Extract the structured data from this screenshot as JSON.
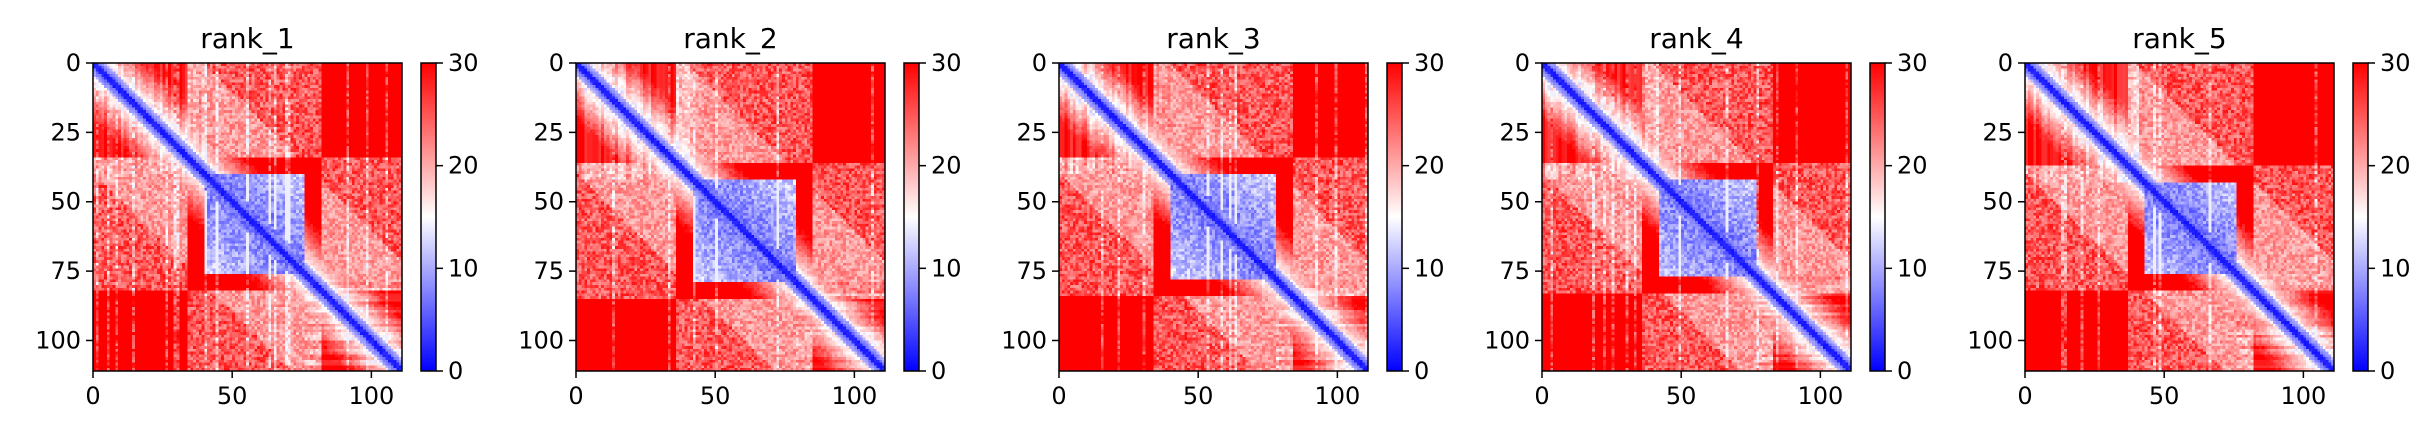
{
  "chart_data": [
    {
      "type": "heatmap",
      "title": "rank_1",
      "xlabel": "",
      "ylabel": "",
      "x_ticks": [
        0,
        50,
        100
      ],
      "y_ticks": [
        0,
        25,
        50,
        75,
        100
      ],
      "xlim": [
        0,
        111
      ],
      "ylim": [
        111,
        0
      ],
      "colorbar": {
        "range": [
          0,
          30
        ],
        "ticks": [
          0,
          10,
          20,
          30
        ],
        "colormap": "bwr",
        "low": "#0000ff",
        "mid": "#ffffff",
        "high": "#ff0000"
      },
      "size": 111,
      "domain_block": [
        40,
        75
      ],
      "variant_seed": 1
    },
    {
      "type": "heatmap",
      "title": "rank_2",
      "xlabel": "",
      "ylabel": "",
      "x_ticks": [
        0,
        50,
        100
      ],
      "y_ticks": [
        0,
        25,
        50,
        75,
        100
      ],
      "xlim": [
        0,
        111
      ],
      "ylim": [
        111,
        0
      ],
      "colorbar": {
        "range": [
          0,
          30
        ],
        "ticks": [
          0,
          10,
          20,
          30
        ],
        "colormap": "bwr",
        "low": "#0000ff",
        "mid": "#ffffff",
        "high": "#ff0000"
      },
      "size": 111,
      "domain_block": [
        42,
        78
      ],
      "variant_seed": 2
    },
    {
      "type": "heatmap",
      "title": "rank_3",
      "xlabel": "",
      "ylabel": "",
      "x_ticks": [
        0,
        50,
        100
      ],
      "y_ticks": [
        0,
        25,
        50,
        75,
        100
      ],
      "xlim": [
        0,
        111
      ],
      "ylim": [
        111,
        0
      ],
      "colorbar": {
        "range": [
          0,
          30
        ],
        "ticks": [
          0,
          10,
          20,
          30
        ],
        "colormap": "bwr",
        "low": "#0000ff",
        "mid": "#ffffff",
        "high": "#ff0000"
      },
      "size": 111,
      "domain_block": [
        40,
        77
      ],
      "variant_seed": 3
    },
    {
      "type": "heatmap",
      "title": "rank_4",
      "xlabel": "",
      "ylabel": "",
      "x_ticks": [
        0,
        50,
        100
      ],
      "y_ticks": [
        0,
        25,
        50,
        75,
        100
      ],
      "xlim": [
        0,
        111
      ],
      "ylim": [
        111,
        0
      ],
      "colorbar": {
        "range": [
          0,
          30
        ],
        "ticks": [
          0,
          10,
          20,
          30
        ],
        "colormap": "bwr",
        "low": "#0000ff",
        "mid": "#ffffff",
        "high": "#ff0000"
      },
      "size": 111,
      "domain_block": [
        42,
        76
      ],
      "variant_seed": 4
    },
    {
      "type": "heatmap",
      "title": "rank_5",
      "xlabel": "",
      "ylabel": "",
      "x_ticks": [
        0,
        50,
        100
      ],
      "y_ticks": [
        0,
        25,
        50,
        75,
        100
      ],
      "xlim": [
        0,
        111
      ],
      "ylim": [
        111,
        0
      ],
      "colorbar": {
        "range": [
          0,
          30
        ],
        "ticks": [
          0,
          10,
          20,
          30
        ],
        "colormap": "bwr",
        "low": "#0000ff",
        "mid": "#ffffff",
        "high": "#ff0000"
      },
      "size": 111,
      "domain_block": [
        43,
        75
      ],
      "variant_seed": 5
    }
  ]
}
